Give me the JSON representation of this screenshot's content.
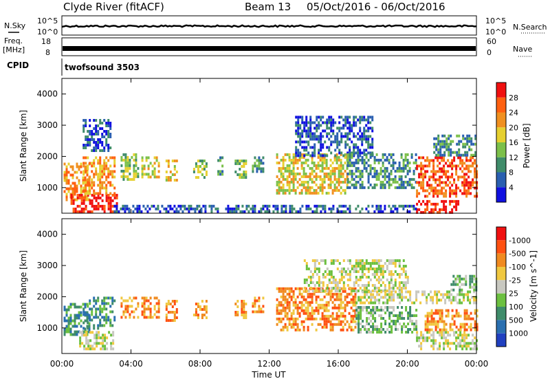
{
  "header": {
    "site": "Clyde River (fitACF)",
    "beam": "Beam 13",
    "dates": "05/Oct/2016 - 06/Oct/2016"
  },
  "strip_nsky": {
    "left_label": "N.Sky",
    "right_label": "N.Search",
    "left_ticks": [
      "10^5",
      "10^0"
    ],
    "right_ticks": [
      "10^5",
      "10^0"
    ]
  },
  "strip_freq": {
    "left_label_1": "Freq.",
    "left_label_2": "[MHz]",
    "right_label": "Nave",
    "left_ticks": [
      "18",
      "8"
    ],
    "right_ticks": [
      "60",
      "0"
    ]
  },
  "cpid": {
    "label": "CPID",
    "program": "twofsound 3503"
  },
  "axes": {
    "ylabel": "Slant Range [km]",
    "xlabel": "Time UT",
    "yticks": [
      "1000",
      "2000",
      "3000",
      "4000"
    ],
    "xticks": [
      "00:00",
      "04:00",
      "08:00",
      "12:00",
      "16:00",
      "20:00",
      "00:00"
    ]
  },
  "chart_data": [
    {
      "type": "heatmap",
      "panel": "power",
      "xlabel": "Time UT",
      "ylabel": "Slant Range [km]",
      "xlim_hours": [
        0,
        24
      ],
      "ylim_km": [
        180,
        4500
      ],
      "colorbar_label": "Power [dB]",
      "colorbar_ticks": [
        "4",
        "8",
        "12",
        "16",
        "20",
        "24",
        "28"
      ],
      "colors": [
        "#1010e0",
        "#2a5fb0",
        "#3f8c6a",
        "#7cc04a",
        "#e6d030",
        "#f09020",
        "#ff6010",
        "#f01010"
      ],
      "regions": [
        {
          "t0": 0.1,
          "t1": 1.6,
          "r0": 600,
          "r1": 1800,
          "level": 5
        },
        {
          "t0": 0.5,
          "t1": 3.2,
          "r0": 200,
          "r1": 800,
          "level": 7
        },
        {
          "t0": 1.2,
          "t1": 3.0,
          "r0": 800,
          "r1": 2000,
          "level": 5
        },
        {
          "t0": 1.2,
          "t1": 2.8,
          "r0": 2200,
          "r1": 3200,
          "level": 1
        },
        {
          "t0": 3.4,
          "t1": 4.4,
          "r0": 1300,
          "r1": 2100,
          "level": 3
        },
        {
          "t0": 4.6,
          "t1": 5.6,
          "r0": 1300,
          "r1": 2000,
          "level": 4
        },
        {
          "t0": 6.0,
          "t1": 6.7,
          "r0": 1200,
          "r1": 1900,
          "level": 4
        },
        {
          "t0": 7.6,
          "t1": 8.4,
          "r0": 1300,
          "r1": 1900,
          "level": 3
        },
        {
          "t0": 9.0,
          "t1": 9.3,
          "r0": 1400,
          "r1": 2000,
          "level": 2
        },
        {
          "t0": 10.0,
          "t1": 10.6,
          "r0": 1300,
          "r1": 1900,
          "level": 3
        },
        {
          "t0": 11.0,
          "t1": 11.6,
          "r0": 1500,
          "r1": 2000,
          "level": 2
        },
        {
          "t0": 12.4,
          "t1": 16.5,
          "r0": 800,
          "r1": 2100,
          "level": 4
        },
        {
          "t0": 13.5,
          "t1": 18.0,
          "r0": 2000,
          "r1": 3300,
          "level": 1
        },
        {
          "t0": 16.5,
          "t1": 20.5,
          "r0": 1000,
          "r1": 2100,
          "level": 2
        },
        {
          "t0": 20.5,
          "t1": 24.0,
          "r0": 700,
          "r1": 2000,
          "level": 6
        },
        {
          "t0": 20.5,
          "t1": 23.0,
          "r0": 200,
          "r1": 600,
          "level": 7
        },
        {
          "t0": 21.5,
          "t1": 24.0,
          "r0": 2000,
          "r1": 2700,
          "level": 2
        },
        {
          "t0": 3.0,
          "t1": 20.5,
          "r0": 200,
          "r1": 450,
          "level": 1
        }
      ]
    },
    {
      "type": "heatmap",
      "panel": "velocity",
      "xlabel": "Time UT",
      "ylabel": "Slant Range [km]",
      "xlim_hours": [
        0,
        24
      ],
      "ylim_km": [
        180,
        4500
      ],
      "colorbar_label": "Velocity [m s^-1]",
      "colorbar_ticks": [
        "1000",
        "500",
        "100",
        "25",
        "-25",
        "-100",
        "-500",
        "-1000"
      ],
      "colors": [
        "#2040c0",
        "#2a6fb0",
        "#3f8c6a",
        "#6cc040",
        "#c8c8c0",
        "#f0c840",
        "#f08a20",
        "#ff5010",
        "#f01010"
      ],
      "regions": [
        {
          "t0": 0.1,
          "t1": 1.6,
          "r0": 800,
          "r1": 1800,
          "level": 2
        },
        {
          "t0": 1.0,
          "t1": 3.0,
          "r0": 300,
          "r1": 900,
          "level": 4
        },
        {
          "t0": 1.2,
          "t1": 3.0,
          "r0": 1000,
          "r1": 2000,
          "level": 2
        },
        {
          "t0": 3.4,
          "t1": 4.4,
          "r0": 1300,
          "r1": 2000,
          "level": 6
        },
        {
          "t0": 4.6,
          "t1": 5.6,
          "r0": 1300,
          "r1": 2000,
          "level": 6
        },
        {
          "t0": 6.0,
          "t1": 6.7,
          "r0": 1200,
          "r1": 1900,
          "level": 6
        },
        {
          "t0": 7.6,
          "t1": 8.4,
          "r0": 1300,
          "r1": 1900,
          "level": 6
        },
        {
          "t0": 10.0,
          "t1": 10.6,
          "r0": 1300,
          "r1": 1900,
          "level": 6
        },
        {
          "t0": 11.0,
          "t1": 11.6,
          "r0": 1500,
          "r1": 2000,
          "level": 6
        },
        {
          "t0": 12.4,
          "t1": 17.0,
          "r0": 900,
          "r1": 2300,
          "level": 6
        },
        {
          "t0": 14.0,
          "t1": 20.0,
          "r0": 2200,
          "r1": 3200,
          "level": 4
        },
        {
          "t0": 17.0,
          "t1": 24.0,
          "r0": 1800,
          "r1": 2200,
          "level": 4
        },
        {
          "t0": 17.0,
          "t1": 20.5,
          "r0": 900,
          "r1": 1700,
          "level": 3
        },
        {
          "t0": 20.5,
          "t1": 24.0,
          "r0": 300,
          "r1": 900,
          "level": 4
        },
        {
          "t0": 21.0,
          "t1": 24.0,
          "r0": 900,
          "r1": 1600,
          "level": 6
        },
        {
          "t0": 22.5,
          "t1": 24.0,
          "r0": 2200,
          "r1": 2700,
          "level": 3
        }
      ]
    }
  ]
}
